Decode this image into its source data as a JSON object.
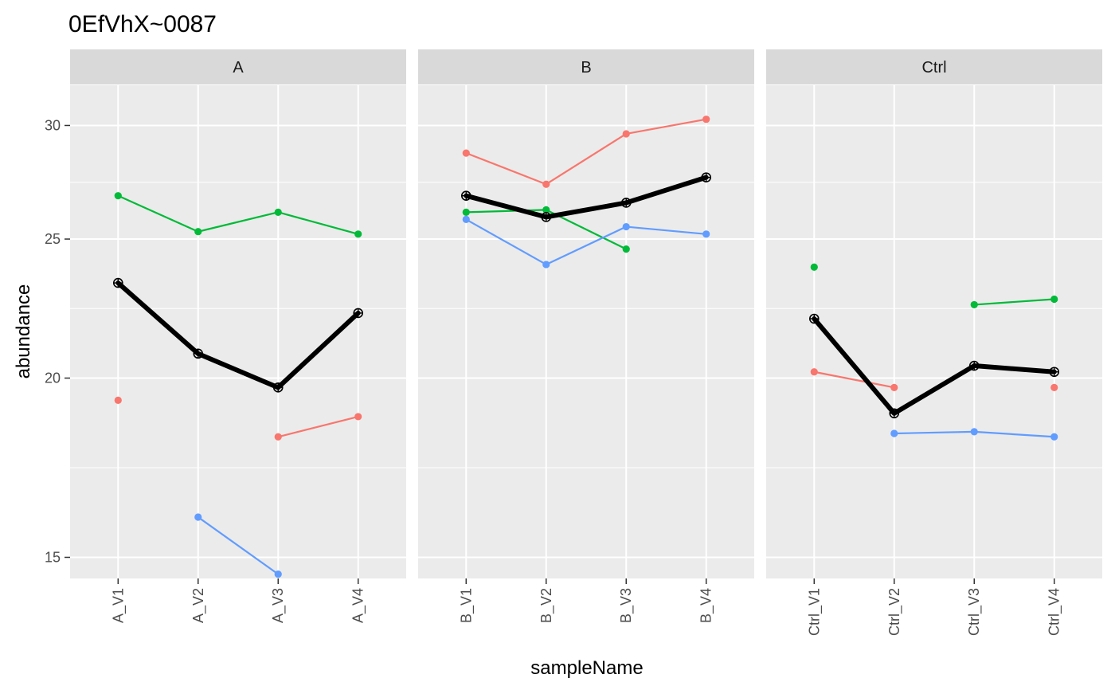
{
  "chart_data": {
    "type": "line",
    "title": "0EfVhX~0087",
    "xlabel": "sampleName",
    "ylabel": "abundance",
    "y_scale": "log",
    "ylim": [
      14.5,
      32.0
    ],
    "y_ticks": [
      15,
      20,
      25,
      30
    ],
    "grid": true,
    "legend": "none",
    "facets": [
      {
        "label": "A",
        "categories": [
          "A_V1",
          "A_V2",
          "A_V3",
          "A_V4"
        ],
        "series": [
          {
            "color": "#F8766D",
            "values": [
              19.3,
              null,
              18.2,
              18.8
            ]
          },
          {
            "color": "#00BA38",
            "values": [
              26.8,
              25.3,
              26.1,
              25.2
            ]
          },
          {
            "color": "#619CFF",
            "values": [
              null,
              16.0,
              14.6,
              null
            ]
          },
          {
            "color": "#000000",
            "summary": true,
            "values": [
              23.3,
              20.8,
              19.7,
              22.2
            ]
          }
        ]
      },
      {
        "label": "B",
        "categories": [
          "B_V1",
          "B_V2",
          "B_V3",
          "B_V4"
        ],
        "series": [
          {
            "color": "#F8766D",
            "values": [
              28.7,
              27.3,
              29.6,
              30.3
            ]
          },
          {
            "color": "#00BA38",
            "values": [
              26.1,
              26.2,
              24.6,
              null
            ]
          },
          {
            "color": "#619CFF",
            "values": [
              25.8,
              24.0,
              25.5,
              25.2
            ]
          },
          {
            "color": "#000000",
            "summary": true,
            "values": [
              26.8,
              25.9,
              26.5,
              27.6
            ]
          }
        ]
      },
      {
        "label": "Ctrl",
        "categories": [
          "Ctrl_V1",
          "Ctrl_V2",
          "Ctrl_V3",
          "Ctrl_V4"
        ],
        "series": [
          {
            "color": "#F8766D",
            "values": [
              20.2,
              19.7,
              null,
              19.7
            ]
          },
          {
            "color": "#00BA38",
            "values": [
              23.9,
              null,
              22.5,
              22.7
            ]
          },
          {
            "color": "#619CFF",
            "values": [
              null,
              18.3,
              18.35,
              18.2
            ]
          },
          {
            "color": "#000000",
            "summary": true,
            "values": [
              22.0,
              18.9,
              20.4,
              20.2
            ]
          }
        ]
      }
    ]
  }
}
